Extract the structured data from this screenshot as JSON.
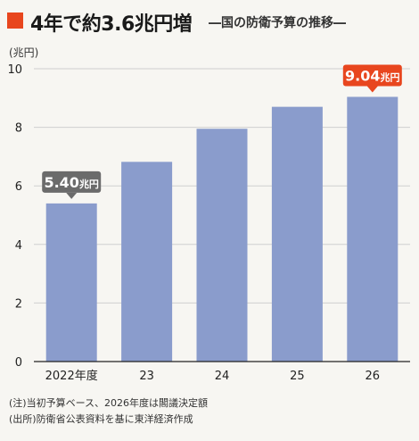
{
  "header": {
    "title": "4年で約3.6兆円増",
    "subtitle": "―国の防衛予算の推移―"
  },
  "chart_data": {
    "type": "bar",
    "title": "4年で約3.6兆円増",
    "subtitle": "―国の防衛予算の推移―",
    "unit_label": "(兆円)",
    "categories": [
      "2022年度",
      "23",
      "24",
      "25",
      "26"
    ],
    "values": [
      5.4,
      6.82,
      7.95,
      8.7,
      9.04
    ],
    "ylim": [
      0,
      10
    ],
    "yticks": [
      0,
      2,
      4,
      6,
      8,
      10
    ],
    "grid": true,
    "bar_color": "#8a9ccc",
    "callouts": [
      {
        "index": 0,
        "value_text": "5.40",
        "unit_text": "兆円",
        "color": "#6b6b6b"
      },
      {
        "index": 4,
        "value_text": "9.04",
        "unit_text": "兆円",
        "color": "#e8461e"
      }
    ]
  },
  "notes": [
    "(注)当初予算ベース、2026年度は閣議決定額",
    "(出所)防衛省公表資料を基に東洋経済作成"
  ],
  "colors": {
    "accent": "#e8461e",
    "bar": "#8a9ccc",
    "gray_callout": "#6b6b6b",
    "background": "#f7f6f2"
  }
}
